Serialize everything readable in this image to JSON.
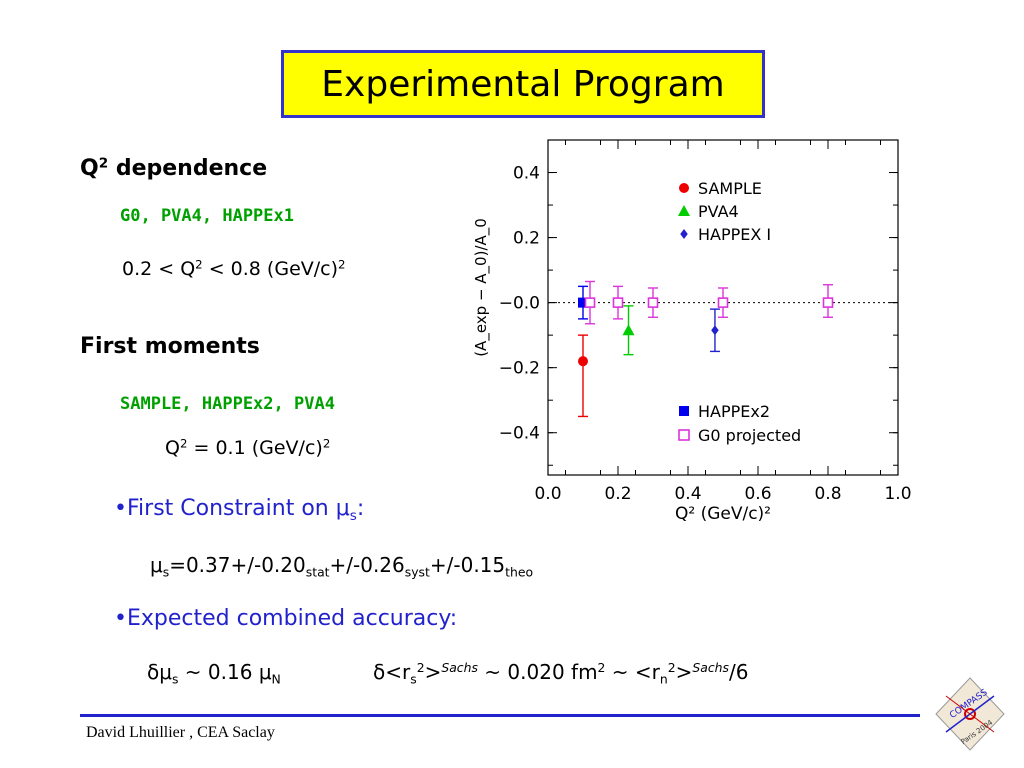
{
  "title": "Experimental Program",
  "q2_section": {
    "heading_q": "Q",
    "heading_sup": "2",
    "heading_rest": " dependence",
    "experiments": "G0,  PVA4, HAPPEx1",
    "range_a": "0.2 < Q",
    "range_sup1": "2",
    "range_b": " < 0.8 (GeV/c)",
    "range_sup2": "2"
  },
  "moments_section": {
    "heading": "First moments",
    "experiments": "SAMPLE, HAPPEx2, PVA4",
    "q2_a": "Q",
    "q2_sup1": "2",
    "q2_b": " = 0.1 (GeV/c)",
    "q2_sup2": "2"
  },
  "constraint": {
    "bullet": "•First Constraint on ",
    "mu": "μ",
    "sub": "s",
    "colon": ":"
  },
  "result": {
    "mu": "μ",
    "s": "s",
    "a": "=0.37+/-0.20",
    "stat": "stat",
    "b": "+/-0.26",
    "syst": "syst",
    "c": "+/-0.15",
    "theo": "theo"
  },
  "accuracy": {
    "label": "•Expected combined accuracy:"
  },
  "accuracy_line": {
    "delta_mu": "δμ",
    "s": "s",
    "eq": " ~ 0.16 ",
    "mu": "μ",
    "N": "N",
    "delta_r": "δ<r",
    "s2": "s",
    "sq": "2",
    "gt": ">",
    "sachs": "Sachs",
    "mid": " ~ 0.020 fm",
    "sq2": "2",
    "tilde": " ~ <r",
    "n": "n",
    "sq3": "2",
    "gt2": ">",
    "sachs2": "Sachs",
    "end": "/6"
  },
  "footer": "David Lhuillier , CEA Saclay",
  "logo": {
    "top": "COMPASS",
    "bottom": "Paris 2004"
  },
  "colors": {
    "title_bg": "#ffff00",
    "border": "#3333cc",
    "green": "#00a000",
    "blue": "#2222cc",
    "red": "#ee0000",
    "pva4": "#00cc00",
    "happex1": "#2222cc",
    "happex2": "#0000ee",
    "g0": "#dd33dd"
  },
  "chart_data": {
    "type": "scatter",
    "xlabel": "Q² (GeV/c)²",
    "ylabel": "(A_exp − A_0)/A_0",
    "xlim": [
      0.0,
      1.0
    ],
    "ylim": [
      -0.53,
      0.5
    ],
    "x_ticks": [
      "0.0",
      "0.2",
      "0.4",
      "0.6",
      "0.8",
      "1.0"
    ],
    "y_ticks": [
      "0.4",
      "0.2",
      "−0.0",
      "−0.2",
      "−0.4"
    ],
    "y_tick_values": [
      0.4,
      0.2,
      0.0,
      -0.2,
      -0.4
    ],
    "reference_line": 0.0,
    "legend_top": [
      "SAMPLE",
      "PVA4",
      "HAPPEX I"
    ],
    "legend_bottom": [
      "HAPPEx2",
      "G0 projected"
    ],
    "series": [
      {
        "name": "SAMPLE",
        "marker": "filled-circle",
        "color": "#ee0000",
        "points": [
          {
            "x": 0.1,
            "y": -0.18,
            "yerr_low": 0.17,
            "yerr_high": 0.08
          }
        ]
      },
      {
        "name": "PVA4",
        "marker": "filled-triangle",
        "color": "#00cc00",
        "points": [
          {
            "x": 0.23,
            "y": -0.085,
            "yerr_low": 0.075,
            "yerr_high": 0.075
          }
        ]
      },
      {
        "name": "HAPPEX I",
        "marker": "filled-diamond",
        "color": "#2222cc",
        "points": [
          {
            "x": 0.477,
            "y": -0.085,
            "yerr_low": 0.065,
            "yerr_high": 0.065
          }
        ]
      },
      {
        "name": "HAPPEx2",
        "marker": "filled-square",
        "color": "#0000ee",
        "points": [
          {
            "x": 0.1,
            "y": 0.0,
            "yerr_low": 0.05,
            "yerr_high": 0.05
          }
        ]
      },
      {
        "name": "G0 projected",
        "marker": "open-square",
        "color": "#dd33dd",
        "points": [
          {
            "x": 0.12,
            "y": 0.0,
            "yerr_low": 0.065,
            "yerr_high": 0.065
          },
          {
            "x": 0.2,
            "y": 0.0,
            "yerr_low": 0.05,
            "yerr_high": 0.05
          },
          {
            "x": 0.3,
            "y": 0.0,
            "yerr_low": 0.045,
            "yerr_high": 0.045
          },
          {
            "x": 0.5,
            "y": 0.0,
            "yerr_low": 0.045,
            "yerr_high": 0.045
          },
          {
            "x": 0.8,
            "y": 0.0,
            "yerr_low": 0.045,
            "yerr_high": 0.055
          }
        ]
      }
    ]
  }
}
